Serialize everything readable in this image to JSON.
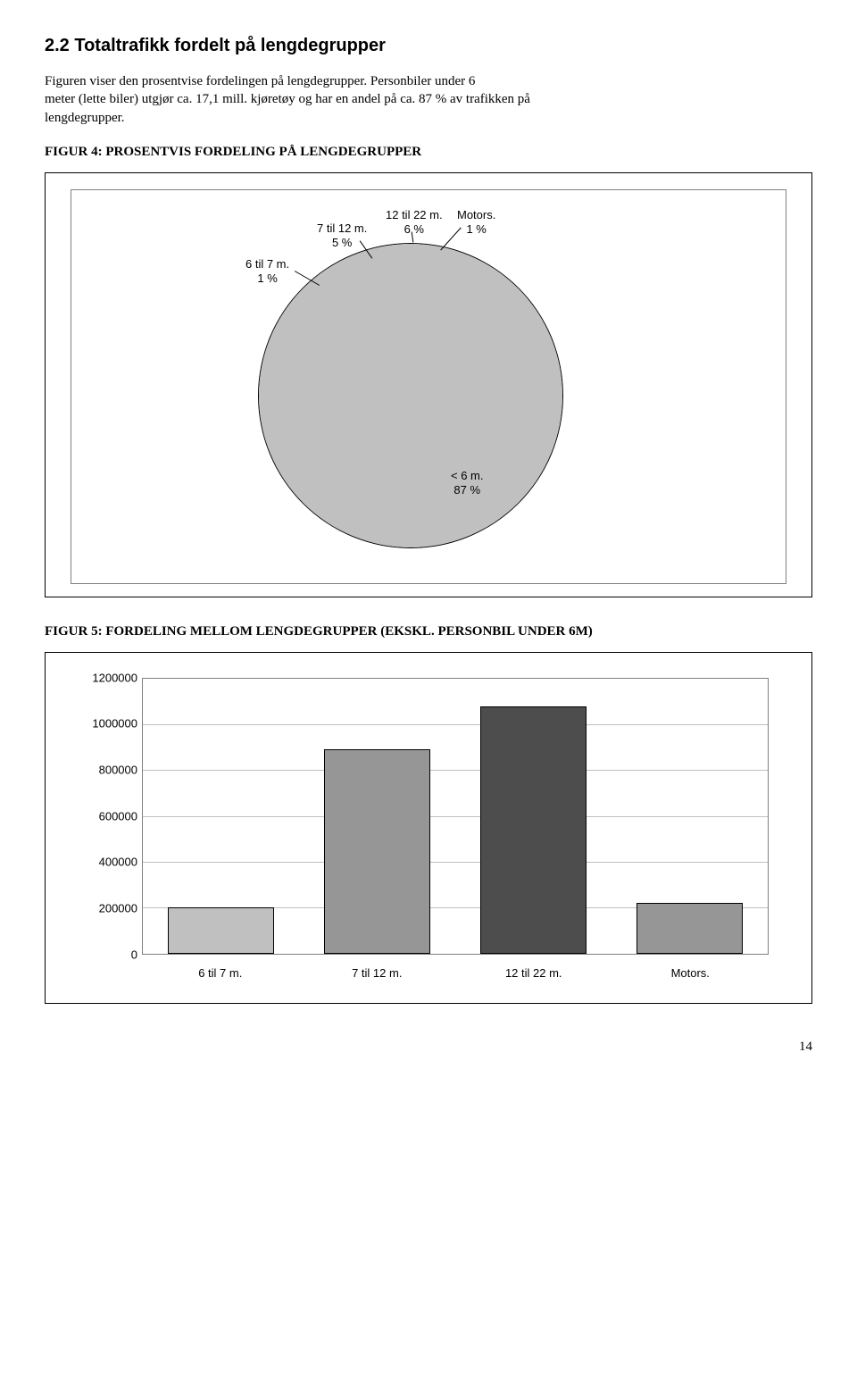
{
  "heading": "2.2 Totaltrafikk fordelt på lengdegrupper",
  "para_line1": "Figuren viser den prosentvise fordelingen på lengdegrupper. Personbiler under 6",
  "para_line2": "meter (lette biler) utgjør ca. 17,1 mill. kjøretøy og har en andel på ca. 87 % av trafikken på",
  "para_line3": "lengdegrupper.",
  "figure4": {
    "title": "FIGUR 4: PROSENTVIS FORDELING PÅ LENGDEGRUPPER",
    "labels": {
      "a": "6 til 7 m.\n1 %",
      "b": "7 til 12 m.\n5 %",
      "c": "12 til 22 m.\n6 %",
      "d": "Motors.\n1 %",
      "e": "< 6 m.\n87 %"
    },
    "colors": {
      "under6": "#c0c0c0",
      "six_seven": "#ffffff",
      "seven_twelve": "#4d4d4d",
      "twelve_twentytwo": "#ffffff",
      "motors": "#333333"
    },
    "slices_pct": {
      "under6": 87,
      "six_seven": 1,
      "seven_twelve": 5,
      "twelve_twentytwo": 6,
      "motors": 1
    },
    "background": "#ffffff",
    "border_color": "#000000"
  },
  "figure5": {
    "title": "FIGUR 5: FORDELING MELLOM LENGDEGRUPPER (EKSKL. PERSONBIL UNDER 6M)",
    "y_ticks": [
      "0",
      "200000",
      "400000",
      "600000",
      "800000",
      "1000000",
      "1200000"
    ],
    "y_max": 1200000,
    "categories": [
      "6 til 7 m.",
      "7 til 12 m.",
      "12 til 22 m.",
      "Motors."
    ],
    "values": [
      200000,
      890000,
      1080000,
      220000
    ],
    "bar_colors": [
      "#c0c0c0",
      "#969696",
      "#4d4d4d",
      "#969696"
    ],
    "bar_width_pct": 17,
    "grid_color": "#c0c0c0",
    "background": "#ffffff"
  },
  "page_number": "14"
}
